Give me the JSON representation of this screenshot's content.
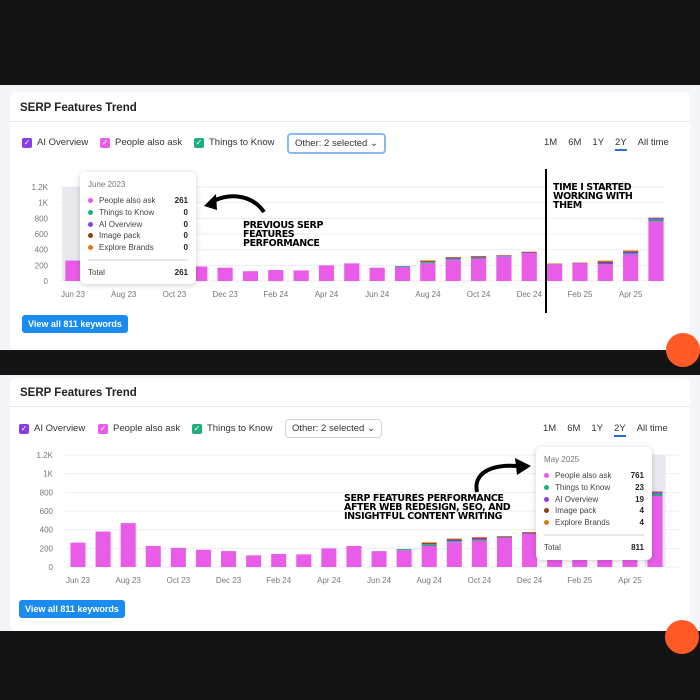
{
  "panels": [
    {
      "title": "SERP Features Trend",
      "other_select": "Other: 2 selected",
      "button": "View all 811 keywords",
      "tooltip": {
        "date": "June 2023",
        "rows": [
          {
            "label": "People also ask",
            "value": "261"
          },
          {
            "label": "Things to Know",
            "value": "0"
          },
          {
            "label": "AI Overview",
            "value": "0"
          },
          {
            "label": "Image pack",
            "value": "0"
          },
          {
            "label": "Explore Brands",
            "value": "0"
          }
        ],
        "total_label": "Total",
        "total": "261"
      },
      "annotations": [
        "PREVIOUS SERP FEATURES PERFORMANCE",
        "TIME I STARTED WORKING WITH THEM"
      ]
    },
    {
      "title": "SERP Features Trend",
      "other_select": "Other: 2 selected",
      "button": "View all 811 keywords",
      "tooltip": {
        "date": "May 2025",
        "rows": [
          {
            "label": "People also ask",
            "value": "761"
          },
          {
            "label": "Things to Know",
            "value": "23"
          },
          {
            "label": "AI Overview",
            "value": "19"
          },
          {
            "label": "Image pack",
            "value": "4"
          },
          {
            "label": "Explore Brands",
            "value": "4"
          }
        ],
        "total_label": "Total",
        "total": "811"
      },
      "annotations": [
        "SERP FEATURES PERFORMANCE AFTER WEB REDESIGN, SEO, AND INSIGHTFUL CONTENT WRITING"
      ]
    }
  ],
  "filters": [
    {
      "label": "AI Overview",
      "color": "#8a3ce8"
    },
    {
      "label": "People also ask",
      "color": "#e85ce8"
    },
    {
      "label": "Things to Know",
      "color": "#1eb07a"
    }
  ],
  "timeframes": [
    "1M",
    "6M",
    "1Y",
    "2Y",
    "All time"
  ],
  "active_timeframe": "2Y",
  "icons": {
    "checkbox": "check-icon",
    "select": "chevron-down-icon",
    "annotation": "curved-arrow-icon"
  },
  "chart_data": {
    "type": "bar",
    "stacked": true,
    "categories": [
      "Jun 23",
      "Jul 23",
      "Aug 23",
      "Sep 23",
      "Oct 23",
      "Nov 23",
      "Dec 23",
      "Jan 24",
      "Feb 24",
      "Mar 24",
      "Apr 24",
      "May 24",
      "Jun 24",
      "Jul 24",
      "Aug 24",
      "Sep 24",
      "Oct 24",
      "Nov 24",
      "Dec 24",
      "Jan 25",
      "Feb 25",
      "Mar 25",
      "Apr 25",
      "May 25"
    ],
    "tick_labels": [
      "Jun 23",
      "Aug 23",
      "Oct 23",
      "Dec 23",
      "Feb 24",
      "Apr 24",
      "Jun 24",
      "Aug 24",
      "Oct 24",
      "Dec 24",
      "Feb 25",
      "Apr 25"
    ],
    "yticks": [
      "0",
      "200",
      "400",
      "600",
      "800",
      "1K",
      "1.2K"
    ],
    "ylim": [
      0,
      1200
    ],
    "grid": true,
    "series": [
      {
        "name": "People also ask",
        "color": "#e85ce8",
        "values": [
          261,
          380,
          470,
          225,
          205,
          185,
          170,
          125,
          140,
          135,
          200,
          225,
          170,
          180,
          225,
          265,
          280,
          310,
          355,
          215,
          225,
          210,
          340,
          761
        ]
      },
      {
        "name": "Things to Know",
        "color": "#1eb07a",
        "values": [
          0,
          0,
          0,
          0,
          0,
          0,
          0,
          0,
          0,
          0,
          0,
          0,
          0,
          12,
          15,
          12,
          10,
          5,
          0,
          0,
          0,
          6,
          12,
          23
        ]
      },
      {
        "name": "AI Overview",
        "color": "#8a3ce8",
        "values": [
          0,
          0,
          0,
          0,
          0,
          0,
          0,
          0,
          0,
          0,
          0,
          0,
          0,
          0,
          5,
          15,
          15,
          8,
          10,
          0,
          5,
          20,
          20,
          19
        ]
      },
      {
        "name": "Image pack",
        "color": "#8b4513",
        "values": [
          0,
          0,
          0,
          0,
          0,
          0,
          0,
          0,
          0,
          0,
          0,
          0,
          0,
          0,
          12,
          8,
          10,
          5,
          5,
          5,
          3,
          12,
          10,
          4
        ]
      },
      {
        "name": "Explore Brands",
        "color": "#e07b10",
        "values": [
          0,
          0,
          0,
          0,
          0,
          0,
          0,
          0,
          0,
          0,
          0,
          0,
          0,
          0,
          8,
          5,
          5,
          4,
          5,
          5,
          4,
          12,
          8,
          4
        ]
      }
    ]
  }
}
